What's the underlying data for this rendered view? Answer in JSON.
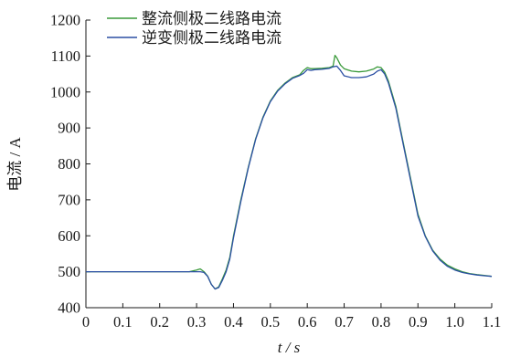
{
  "chart_data": {
    "type": "line",
    "xlabel": "t / s",
    "ylabel": "电流 / A",
    "xlim": [
      0,
      1.1
    ],
    "ylim": [
      400,
      1200
    ],
    "xticks": [
      0,
      0.1,
      0.2,
      0.3,
      0.4,
      0.5,
      0.6,
      0.7,
      0.8,
      0.9,
      1.0,
      1.1
    ],
    "xtick_labels": [
      "0",
      "0.1",
      "0.2",
      "0.3",
      "0.4",
      "0.5",
      "0.6",
      "0.7",
      "0.8",
      "0.9",
      "1.0",
      "1.1"
    ],
    "yticks": [
      400,
      500,
      600,
      700,
      800,
      900,
      1000,
      1100,
      1200
    ],
    "yticks_labels": [
      "400",
      "500",
      "600",
      "700",
      "800",
      "900",
      "1000",
      "1100",
      "1200"
    ],
    "grid": false,
    "legend_position": "top-left",
    "series": [
      {
        "name": "整流侧极二线路电流",
        "color": "#3a9a3a",
        "x": [
          0,
          0.1,
          0.2,
          0.28,
          0.3,
          0.31,
          0.32,
          0.33,
          0.34,
          0.35,
          0.36,
          0.37,
          0.38,
          0.39,
          0.4,
          0.42,
          0.44,
          0.46,
          0.48,
          0.5,
          0.52,
          0.54,
          0.56,
          0.58,
          0.59,
          0.6,
          0.61,
          0.62,
          0.64,
          0.66,
          0.67,
          0.675,
          0.68,
          0.69,
          0.7,
          0.72,
          0.74,
          0.76,
          0.78,
          0.79,
          0.8,
          0.81,
          0.82,
          0.84,
          0.86,
          0.88,
          0.9,
          0.92,
          0.94,
          0.96,
          0.98,
          1.0,
          1.02,
          1.04,
          1.06,
          1.08,
          1.1
        ],
        "y": [
          500,
          500,
          500,
          500,
          505,
          508,
          500,
          488,
          465,
          452,
          458,
          480,
          505,
          540,
          600,
          700,
          790,
          870,
          930,
          975,
          1005,
          1025,
          1040,
          1048,
          1060,
          1068,
          1065,
          1065,
          1066,
          1068,
          1072,
          1102,
          1095,
          1075,
          1065,
          1058,
          1056,
          1058,
          1064,
          1070,
          1068,
          1055,
          1030,
          960,
          860,
          760,
          660,
          600,
          560,
          535,
          518,
          508,
          500,
          495,
          492,
          490,
          487
        ]
      },
      {
        "name": "逆变侧极二线路电流",
        "color": "#2b4fa3",
        "x": [
          0,
          0.1,
          0.2,
          0.28,
          0.3,
          0.31,
          0.32,
          0.33,
          0.34,
          0.35,
          0.36,
          0.37,
          0.38,
          0.39,
          0.4,
          0.42,
          0.44,
          0.46,
          0.48,
          0.5,
          0.52,
          0.54,
          0.56,
          0.58,
          0.59,
          0.6,
          0.61,
          0.62,
          0.64,
          0.66,
          0.67,
          0.68,
          0.69,
          0.7,
          0.72,
          0.74,
          0.76,
          0.78,
          0.79,
          0.8,
          0.81,
          0.82,
          0.84,
          0.86,
          0.88,
          0.9,
          0.92,
          0.94,
          0.96,
          0.98,
          1.0,
          1.02,
          1.04,
          1.06,
          1.08,
          1.1
        ],
        "y": [
          500,
          500,
          500,
          500,
          500,
          500,
          498,
          487,
          465,
          452,
          456,
          476,
          500,
          535,
          595,
          695,
          788,
          868,
          928,
          973,
          1003,
          1023,
          1038,
          1046,
          1052,
          1062,
          1060,
          1062,
          1063,
          1066,
          1070,
          1072,
          1060,
          1045,
          1040,
          1040,
          1042,
          1050,
          1058,
          1062,
          1050,
          1025,
          955,
          855,
          755,
          655,
          598,
          558,
          532,
          515,
          505,
          498,
          494,
          491,
          489,
          487
        ]
      }
    ]
  }
}
